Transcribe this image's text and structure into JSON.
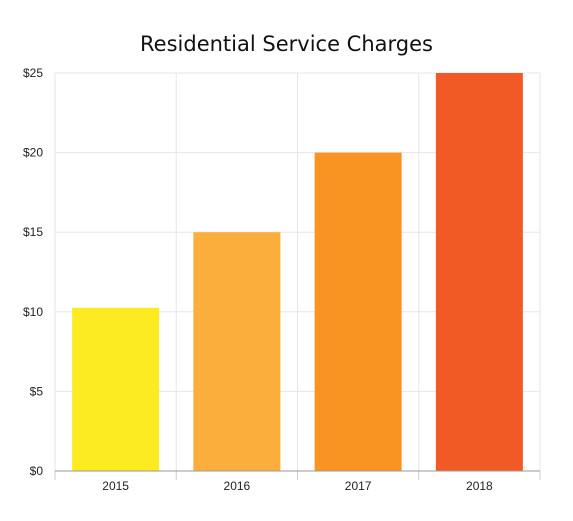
{
  "chart_data": {
    "type": "bar",
    "title": "Residential Service Charges",
    "xlabel": "",
    "ylabel": "",
    "categories": [
      "2015",
      "2016",
      "2017",
      "2018"
    ],
    "values": [
      10.25,
      15,
      20,
      25
    ],
    "colors": [
      "#fdeb22",
      "#fbae3b",
      "#f99321",
      "#f15a24"
    ],
    "ylim": [
      0,
      25
    ],
    "yticks": [
      0,
      5,
      10,
      15,
      20,
      25
    ],
    "ytick_labels": [
      "$0",
      "$5",
      "$10",
      "$15",
      "$20",
      "$25"
    ],
    "grid": true,
    "legend": "none"
  }
}
